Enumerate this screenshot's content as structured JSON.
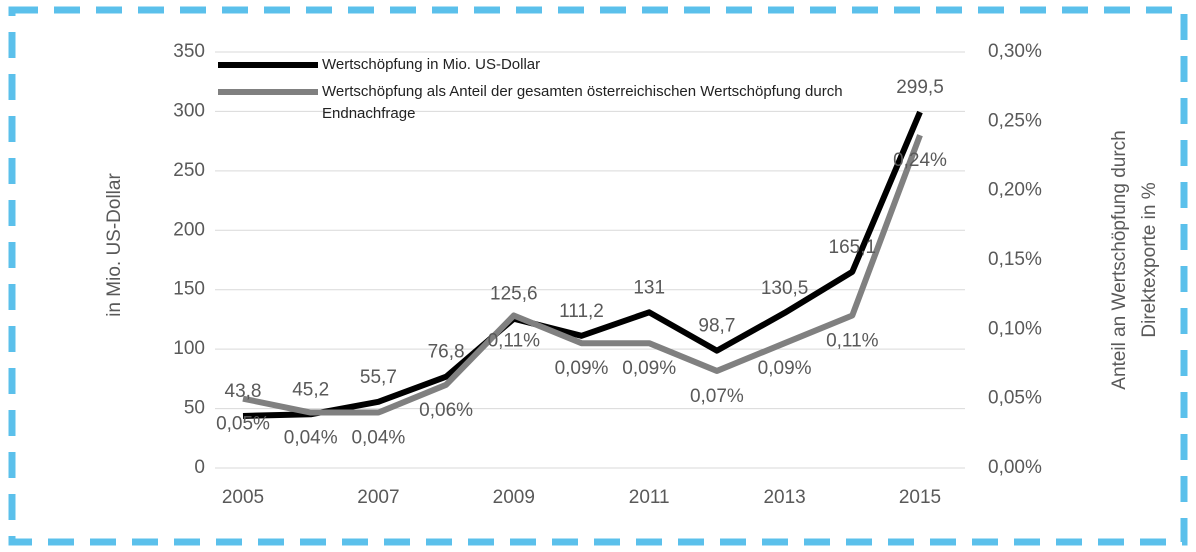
{
  "chart_data": {
    "type": "line",
    "x": [
      2005,
      2006,
      2007,
      2008,
      2009,
      2010,
      2011,
      2012,
      2013,
      2014,
      2015
    ],
    "xticks": [
      2005,
      2007,
      2009,
      2011,
      2013,
      2015
    ],
    "xlim": [
      2005,
      2015
    ],
    "ylim": [
      0,
      350
    ],
    "yticks": [
      0,
      50,
      100,
      150,
      200,
      250,
      300,
      350
    ],
    "y2lim": [
      0,
      0.3
    ],
    "y2ticks": [
      {
        "value": 0,
        "label": "0,00%"
      },
      {
        "value": 0.05,
        "label": "0,05%"
      },
      {
        "value": 0.1,
        "label": "0,10%"
      },
      {
        "value": 0.15,
        "label": "0,15%"
      },
      {
        "value": 0.2,
        "label": "0,20%"
      },
      {
        "value": 0.25,
        "label": "0,25%"
      },
      {
        "value": 0.3,
        "label": "0,30%"
      }
    ],
    "ylabel": "in Mio. US-Dollar",
    "y2label": "Anteil an Wertschöpfung durch Direktexporte  in %",
    "grid": true,
    "legend": "top-left",
    "series": [
      {
        "name": "Wertschöpfung in Mio. US-Dollar",
        "color": "#000000",
        "values": [
          43.8,
          45.2,
          55.7,
          76.8,
          125.6,
          111.2,
          131,
          98.7,
          130.5,
          165.1,
          299.5
        ],
        "value_labels": [
          "43,8",
          "45,2",
          "55,7",
          "76,8",
          "125,6",
          "111,2",
          "131",
          "98,7",
          "130,5",
          "165,1",
          "299,5"
        ]
      },
      {
        "name": "Wertschöpfung als Anteil der gesamten österreichischen Wertschöpfung durch Endnachfrage",
        "color": "#808080",
        "axis": "y2",
        "values": [
          0.05,
          0.04,
          0.04,
          0.06,
          0.11,
          0.09,
          0.09,
          0.07,
          0.09,
          0.11,
          0.24
        ],
        "value_labels": [
          "0,05%",
          "0,04%",
          "0,04%",
          "0,06%",
          "0,11%",
          "0,09%",
          "0,09%",
          "0,07%",
          "0,09%",
          "0,11%",
          "0,24%"
        ]
      }
    ]
  }
}
